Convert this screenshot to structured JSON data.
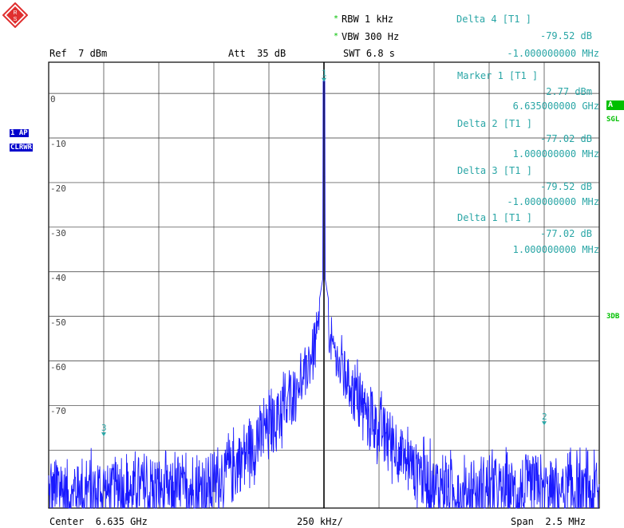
{
  "header": {
    "rbw": "RBW 1 kHz",
    "vbw": "VBW 300 Hz",
    "swt": "SWT 6.8 s",
    "ref": "Ref  7 dBm",
    "att": "Att  35 dB"
  },
  "markers_readout": [
    {
      "title": "Delta 4 [T1 ]",
      "level": "-79.52 dB",
      "freq": "-1.000000000 MHz"
    },
    {
      "title": "Marker 1 [T1 ]",
      "level": "2.77 dBm",
      "freq": "6.635000000 GHz"
    },
    {
      "title": "Delta 2 [T1 ]",
      "level": "-77.02 dB",
      "freq": "1.000000000 MHz"
    },
    {
      "title": "Delta 3 [T1 ]",
      "level": "-79.52 dB",
      "freq": "-1.000000000 MHz"
    },
    {
      "title": "Delta 1 [T1 ]",
      "level": "-77.02 dB",
      "freq": "1.000000000 MHz"
    }
  ],
  "y_tick_labels": [
    "0",
    "-10",
    "-20",
    "-30",
    "-40",
    "-50",
    "-60",
    "-70"
  ],
  "side_badges": {
    "trace": "1 AP",
    "mode": "CLRWR",
    "a": "A",
    "sgl": "SGL",
    "db3": "3DB"
  },
  "footer": {
    "center": "Center  6.635 GHz",
    "div": "250 kHz/",
    "span": "Span  2.5 MHz"
  },
  "marker_labels": [
    "1",
    "2",
    "3"
  ],
  "colors": {
    "trace": "#1a1aff",
    "readout": "#2aa6a6",
    "star": "#00c000",
    "grid": "#000000",
    "brand": "#e03030"
  },
  "chart_data": {
    "type": "line",
    "x_center_ghz": 6.635,
    "span_mhz": 2.5,
    "ylim": [
      -93,
      7
    ],
    "y_ticks": [
      0,
      -10,
      -20,
      -30,
      -40,
      -50,
      -60,
      -70
    ],
    "peak": {
      "x_mhz": 0,
      "y_dbm": 2.77
    },
    "noise_floor_dbm": -88,
    "markers": [
      {
        "label": "1",
        "x_mhz": 0,
        "y_dbm": 2.77
      },
      {
        "label": "2",
        "x_mhz": 1.0,
        "y_dbm": -74.25
      },
      {
        "label": "3",
        "x_mhz": -1.0,
        "y_dbm": -76.75
      }
    ]
  }
}
